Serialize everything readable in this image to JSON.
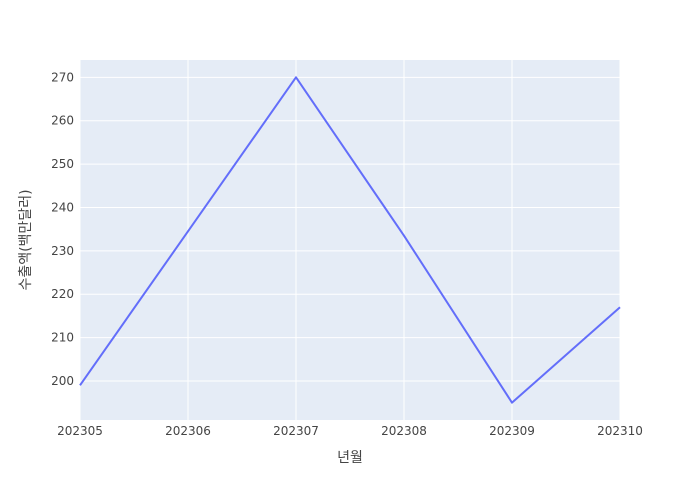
{
  "chart_data": {
    "type": "line",
    "title": "",
    "xlabel": "년월",
    "ylabel": "수출액(백만달러)",
    "x": [
      "202305",
      "202306",
      "202307",
      "202308",
      "202309",
      "202310"
    ],
    "series": [
      {
        "values": [
          199,
          234.5,
          270,
          233.5,
          195,
          217
        ]
      }
    ],
    "ylim": [
      191,
      274
    ],
    "yticks": [
      200,
      210,
      220,
      230,
      240,
      250,
      260,
      270
    ],
    "grid": true,
    "legend": "none",
    "colors": {
      "plot_background": "#E5ECF6",
      "grid": "#ffffff",
      "line": "#636EFA",
      "text": "#444444"
    }
  }
}
